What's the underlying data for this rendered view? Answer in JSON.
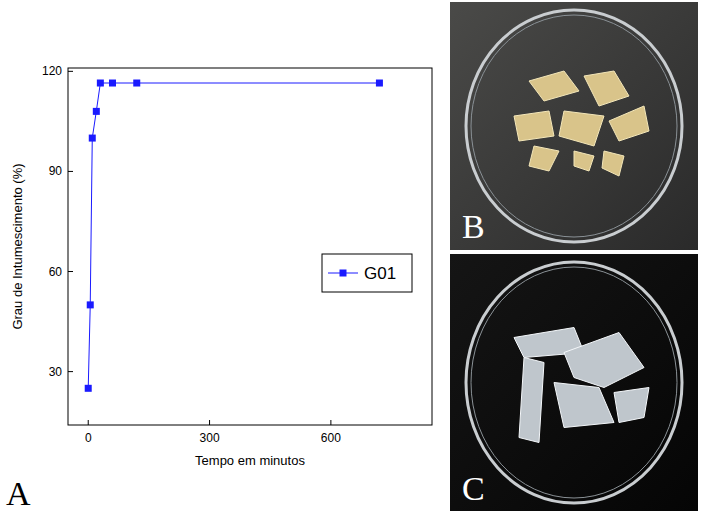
{
  "chart_data": {
    "type": "line",
    "x_label": "Tempo em minutos",
    "y_label": "Grau de Intumescimento (%)",
    "x": [
      0,
      5,
      10,
      20,
      30,
      60,
      120,
      720
    ],
    "series": [
      {
        "name": "G01",
        "color": "#1a1aff",
        "marker": "square",
        "line_style": "solid",
        "values": [
          25,
          50,
          100,
          108,
          116.5,
          116.5,
          116.5,
          116.5
        ]
      }
    ],
    "xlim": [
      -50,
      850
    ],
    "ylim": [
      14,
      121
    ],
    "xticks": [
      0,
      300,
      600
    ],
    "yticks": [
      30,
      60,
      90,
      120
    ],
    "grid": false,
    "legend": "right"
  },
  "panel_labels": [
    "A",
    "B",
    "C"
  ]
}
